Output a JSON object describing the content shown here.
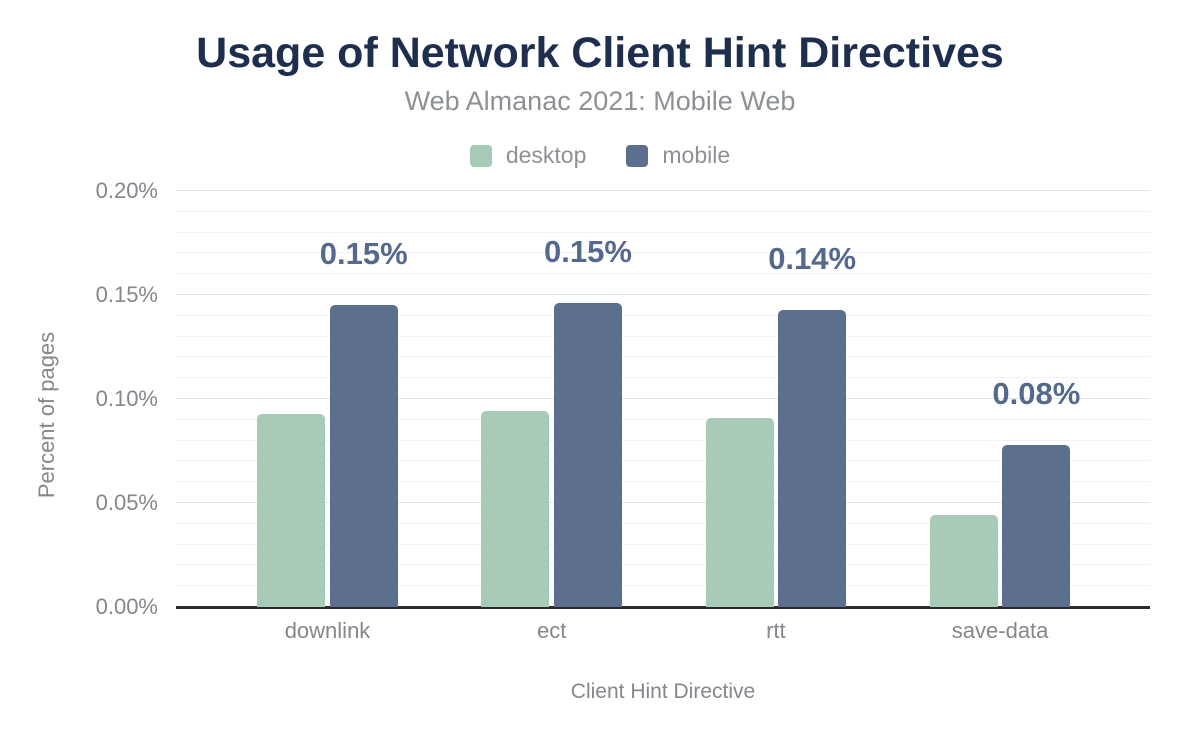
{
  "title": "Usage of Network Client Hint Directives",
  "subtitle": "Web Almanac 2021: Mobile Web",
  "colors": {
    "title": "#1d2e4e",
    "subtitle_gray": "#8d9196",
    "axis_gray": "#84878c",
    "desktop_green": "#a8cbb8",
    "mobile_blue": "#5d6f8e",
    "value_label": "#55698d",
    "axis_line": "#292b2d",
    "grid_major": "#e4e4e6",
    "grid_minor": "#f1f1f1"
  },
  "chart_data": {
    "type": "bar",
    "title": "Usage of Network Client Hint Directives",
    "subtitle": "Web Almanac 2021: Mobile Web",
    "categories": [
      "downlink",
      "ect",
      "rtt",
      "save-data"
    ],
    "series": [
      {
        "name": "desktop",
        "color": "#a8cbb8",
        "values": [
          0.093,
          0.094,
          0.091,
          0.044
        ]
      },
      {
        "name": "mobile",
        "color": "#5d6f8e",
        "values": [
          0.145,
          0.146,
          0.143,
          0.078
        ],
        "value_labels": [
          "0.15%",
          "0.15%",
          "0.14%",
          "0.08%"
        ]
      }
    ],
    "xlabel": "Client Hint Directive",
    "ylabel": "Percent of pages",
    "ylim": [
      0,
      0.2
    ],
    "yticks": [
      {
        "label": "0.00%",
        "value": 0
      },
      {
        "label": "0.05%",
        "value": 0.05
      },
      {
        "label": "0.10%",
        "value": 0.1
      },
      {
        "label": "0.15%",
        "value": 0.15
      },
      {
        "label": "0.20%",
        "value": 0.2
      }
    ],
    "grid": {
      "minor_step": 0.01,
      "major_step": 0.05,
      "show": true
    },
    "legend_position": "top",
    "units": "percent of pages"
  }
}
